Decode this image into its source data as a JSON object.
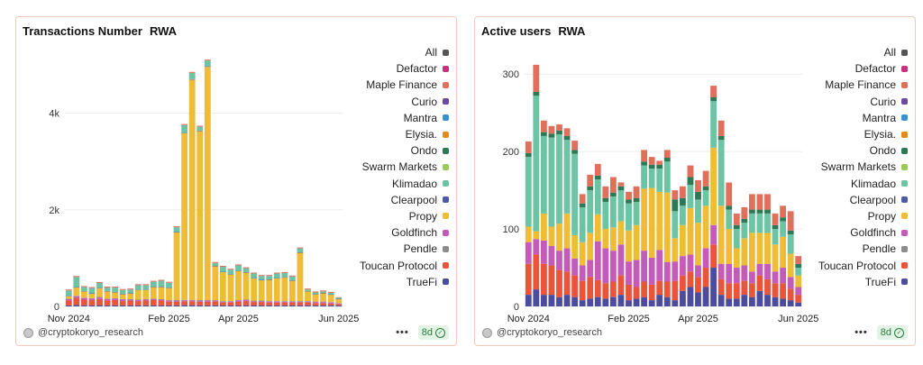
{
  "colors": {
    "All": "#555555",
    "Defactor": "#c7317e",
    "Maple Finance": "#e06f5c",
    "Curio": "#6a4aa0",
    "Mantra": "#3a8fcf",
    "Elysia.": "#e38a1c",
    "Ondo": "#2c7a55",
    "Swarm Markets": "#9acb58",
    "Klimadao": "#6cc4a4",
    "Clearpool": "#4c5aa8",
    "Propy": "#efbd35",
    "Goldfinch": "#c45bb8",
    "Pendle": "#8c8c8c",
    "Toucan Protocol": "#e9543a",
    "TrueFi": "#4c4c9e"
  },
  "legend": [
    "All",
    "Defactor",
    "Maple Finance",
    "Curio",
    "Mantra",
    "Elysia.",
    "Ondo",
    "Swarm Markets",
    "Klimadao",
    "Clearpool",
    "Propy",
    "Goldfinch",
    "Pendle",
    "Toucan Protocol",
    "TrueFi"
  ],
  "footer": {
    "handle": "@cryptokoryo_research",
    "dots": "•••",
    "badge": "8d",
    "check": "✓"
  },
  "chart_data": [
    {
      "type": "bar",
      "stacked": true,
      "title": "Transactions Number",
      "subtitle": "RWA",
      "ylim": [
        0,
        5000
      ],
      "yticks": [
        {
          "v": 0,
          "label": "0"
        },
        {
          "v": 2000,
          "label": "2k"
        },
        {
          "v": 4000,
          "label": "4k"
        }
      ],
      "xticks": [
        {
          "i": 0,
          "label": "Nov 2024"
        },
        {
          "i": 13,
          "label": "Feb 2025"
        },
        {
          "i": 22,
          "label": "Apr 2025"
        },
        {
          "i": 35,
          "label": "Jun 2025"
        }
      ],
      "categories": [
        "2024-10-27",
        "2024-11-03",
        "2024-11-10",
        "2024-11-17",
        "2024-11-24",
        "2024-12-01",
        "2024-12-08",
        "2024-12-15",
        "2024-12-22",
        "2024-12-29",
        "2025-01-05",
        "2025-01-12",
        "2025-01-19",
        "2025-01-26",
        "2025-02-02",
        "2025-02-09",
        "2025-02-16",
        "2025-02-23",
        "2025-03-02",
        "2025-03-09",
        "2025-03-16",
        "2025-03-23",
        "2025-03-30",
        "2025-04-06",
        "2025-04-13",
        "2025-04-20",
        "2025-04-27",
        "2025-05-04",
        "2025-05-11",
        "2025-05-18",
        "2025-05-25",
        "2025-06-01",
        "2025-06-08",
        "2025-06-15",
        "2025-06-22",
        "2025-06-29"
      ],
      "series": [
        {
          "name": "TrueFi",
          "values": [
            20,
            30,
            20,
            20,
            25,
            20,
            20,
            20,
            20,
            20,
            20,
            20,
            20,
            20,
            20,
            25,
            25,
            20,
            20,
            20,
            20,
            20,
            20,
            20,
            20,
            20,
            20,
            20,
            20,
            20,
            20,
            20,
            20,
            20,
            20,
            20
          ]
        },
        {
          "name": "Toucan Protocol",
          "values": [
            100,
            150,
            120,
            110,
            130,
            100,
            110,
            90,
            100,
            90,
            100,
            110,
            100,
            80,
            80,
            80,
            80,
            80,
            80,
            80,
            60,
            60,
            80,
            90,
            70,
            70,
            60,
            60,
            60,
            60,
            60,
            60,
            50,
            50,
            40,
            30
          ]
        },
        {
          "name": "Goldfinch",
          "values": [
            30,
            30,
            30,
            30,
            30,
            30,
            30,
            30,
            20,
            20,
            20,
            20,
            20,
            20,
            20,
            20,
            20,
            20,
            20,
            20,
            20,
            20,
            20,
            20,
            20,
            20,
            20,
            20,
            20,
            20,
            20,
            20,
            20,
            20,
            20,
            10
          ]
        },
        {
          "name": "Pendle",
          "values": [
            10,
            10,
            10,
            10,
            10,
            10,
            10,
            10,
            10,
            10,
            10,
            10,
            10,
            10,
            10,
            10,
            10,
            10,
            10,
            10,
            10,
            10,
            10,
            10,
            10,
            10,
            10,
            10,
            10,
            10,
            10,
            10,
            10,
            10,
            10,
            10
          ]
        },
        {
          "name": "Propy",
          "values": [
            50,
            170,
            130,
            90,
            180,
            150,
            120,
            100,
            120,
            200,
            190,
            240,
            250,
            250,
            1400,
            3450,
            4560,
            3500,
            4830,
            700,
            600,
            550,
            600,
            560,
            460,
            420,
            440,
            470,
            490,
            420,
            1000,
            200,
            150,
            170,
            150,
            80
          ]
        },
        {
          "name": "Clearpool",
          "values": [
            10,
            10,
            10,
            10,
            10,
            10,
            10,
            10,
            10,
            10,
            10,
            10,
            10,
            10,
            10,
            10,
            10,
            10,
            10,
            10,
            10,
            10,
            10,
            10,
            10,
            10,
            10,
            10,
            10,
            10,
            10,
            10,
            10,
            10,
            10,
            10
          ]
        },
        {
          "name": "Klimadao",
          "values": [
            110,
            210,
            80,
            110,
            100,
            70,
            90,
            80,
            70,
            90,
            90,
            100,
            120,
            100,
            100,
            160,
            130,
            80,
            120,
            60,
            100,
            90,
            110,
            80,
            90,
            80,
            70,
            90,
            80,
            80,
            80,
            30,
            30,
            30,
            30,
            20
          ]
        },
        {
          "name": "Maple Finance",
          "values": [
            20,
            20,
            20,
            20,
            20,
            20,
            20,
            20,
            20,
            20,
            20,
            20,
            20,
            20,
            20,
            20,
            20,
            20,
            20,
            20,
            20,
            20,
            20,
            20,
            20,
            20,
            20,
            20,
            20,
            20,
            20,
            20,
            20,
            20,
            20,
            10
          ]
        }
      ]
    },
    {
      "type": "bar",
      "stacked": true,
      "title": "Active users",
      "subtitle": "RWA",
      "ylim": [
        0,
        320
      ],
      "yticks": [
        {
          "v": 0,
          "label": "0"
        },
        {
          "v": 100,
          "label": "100"
        },
        {
          "v": 200,
          "label": "200"
        },
        {
          "v": 300,
          "label": "300"
        }
      ],
      "xticks": [
        {
          "i": 0,
          "label": "Nov 2024"
        },
        {
          "i": 13,
          "label": "Feb 2025"
        },
        {
          "i": 22,
          "label": "Apr 2025"
        },
        {
          "i": 35,
          "label": "Jun 2025"
        }
      ],
      "categories": [
        "2024-10-27",
        "2024-11-03",
        "2024-11-10",
        "2024-11-17",
        "2024-11-24",
        "2024-12-01",
        "2024-12-08",
        "2024-12-15",
        "2024-12-22",
        "2024-12-29",
        "2025-01-05",
        "2025-01-12",
        "2025-01-19",
        "2025-01-26",
        "2025-02-02",
        "2025-02-09",
        "2025-02-16",
        "2025-02-23",
        "2025-03-02",
        "2025-03-09",
        "2025-03-16",
        "2025-03-23",
        "2025-03-30",
        "2025-04-06",
        "2025-04-13",
        "2025-04-20",
        "2025-04-27",
        "2025-05-04",
        "2025-05-11",
        "2025-05-18",
        "2025-05-25",
        "2025-06-01",
        "2025-06-08",
        "2025-06-15",
        "2025-06-22",
        "2025-06-29"
      ],
      "series": [
        {
          "name": "TrueFi",
          "values": [
            15,
            22,
            15,
            15,
            12,
            15,
            12,
            8,
            10,
            12,
            10,
            12,
            15,
            8,
            10,
            12,
            8,
            15,
            12,
            8,
            20,
            25,
            18,
            25,
            50,
            15,
            10,
            10,
            15,
            12,
            20,
            15,
            12,
            10,
            8,
            5
          ]
        },
        {
          "name": "Toucan Protocol",
          "values": [
            40,
            45,
            40,
            38,
            35,
            30,
            28,
            25,
            28,
            22,
            20,
            20,
            25,
            20,
            15,
            20,
            20,
            18,
            20,
            25,
            20,
            20,
            20,
            25,
            30,
            20,
            20,
            20,
            18,
            18,
            20,
            20,
            18,
            20,
            15,
            10
          ]
        },
        {
          "name": "Goldfinch",
          "values": [
            28,
            20,
            30,
            25,
            25,
            30,
            22,
            20,
            22,
            50,
            45,
            40,
            40,
            30,
            35,
            40,
            35,
            40,
            25,
            25,
            25,
            22,
            15,
            25,
            25,
            20,
            25,
            20,
            20,
            15,
            15,
            20,
            15,
            20,
            15,
            10
          ]
        },
        {
          "name": "Propy",
          "values": [
            20,
            10,
            35,
            25,
            35,
            45,
            30,
            30,
            35,
            35,
            25,
            30,
            30,
            40,
            45,
            80,
            90,
            75,
            90,
            30,
            40,
            60,
            55,
            55,
            100,
            75,
            45,
            25,
            35,
            50,
            40,
            40,
            35,
            40,
            30,
            15
          ]
        },
        {
          "name": "Klimadao",
          "values": [
            90,
            175,
            100,
            115,
            115,
            95,
            105,
            45,
            55,
            45,
            35,
            40,
            40,
            35,
            30,
            30,
            25,
            30,
            40,
            35,
            25,
            30,
            30,
            20,
            60,
            85,
            25,
            25,
            20,
            25,
            25,
            25,
            20,
            20,
            25,
            10
          ]
        },
        {
          "name": "Ondo",
          "values": [
            5,
            5,
            5,
            5,
            5,
            5,
            5,
            5,
            5,
            5,
            5,
            5,
            5,
            5,
            5,
            5,
            5,
            5,
            5,
            15,
            10,
            10,
            10,
            5,
            5,
            5,
            5,
            5,
            5,
            5,
            5,
            5,
            5,
            5,
            5,
            5
          ]
        },
        {
          "name": "Maple Finance",
          "values": [
            15,
            35,
            15,
            10,
            8,
            10,
            12,
            12,
            15,
            15,
            15,
            20,
            5,
            10,
            15,
            15,
            10,
            5,
            10,
            12,
            15,
            15,
            15,
            20,
            15,
            20,
            30,
            15,
            15,
            20,
            20,
            20,
            15,
            15,
            25,
            10
          ]
        }
      ]
    }
  ]
}
